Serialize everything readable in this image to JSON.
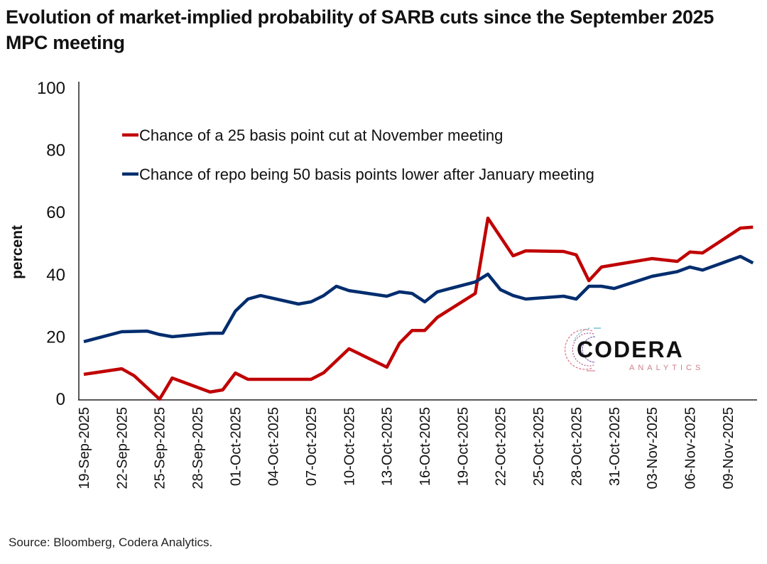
{
  "title": "Evolution of market-implied probability of SARB cuts since the September 2025 MPC meeting",
  "source": "Source: Bloomberg, Codera Analytics.",
  "logo": {
    "name": "CODERA",
    "subtitle": "ANALYTICS"
  },
  "chart_data": {
    "type": "line",
    "title": "Evolution of market-implied probability of SARB cuts since the September 2025 MPC meeting",
    "xlabel": "",
    "ylabel": "percent",
    "ylim": [
      0,
      100
    ],
    "yticks": [
      0,
      20,
      40,
      60,
      80,
      100
    ],
    "x_start": "19-Sep-2025",
    "x_end": "11-Nov-2025",
    "xlim_days": [
      0,
      53
    ],
    "xtick_labels": [
      "19-Sep-2025",
      "22-Sep-2025",
      "25-Sep-2025",
      "28-Sep-2025",
      "01-Oct-2025",
      "04-Oct-2025",
      "07-Oct-2025",
      "10-Oct-2025",
      "13-Oct-2025",
      "16-Oct-2025",
      "19-Oct-2025",
      "22-Oct-2025",
      "25-Oct-2025",
      "28-Oct-2025",
      "31-Oct-2025",
      "03-Nov-2025",
      "06-Nov-2025",
      "09-Nov-2025"
    ],
    "xtick_days": [
      0,
      3,
      6,
      9,
      12,
      15,
      18,
      21,
      24,
      27,
      30,
      33,
      36,
      39,
      42,
      45,
      48,
      51
    ],
    "grid": false,
    "legend_position": "top-left",
    "series": [
      {
        "name": "Chance of a 25 basis point cut at November meeting",
        "color": "#c00000",
        "points": [
          {
            "date": "19-Sep-2025",
            "day": 0,
            "value": 8.0
          },
          {
            "date": "22-Sep-2025",
            "day": 3,
            "value": 9.8
          },
          {
            "date": "23-Sep-2025",
            "day": 4,
            "value": 7.5
          },
          {
            "date": "25-Sep-2025",
            "day": 6,
            "value": 0.0
          },
          {
            "date": "26-Sep-2025",
            "day": 7,
            "value": 6.8
          },
          {
            "date": "29-Sep-2025",
            "day": 10,
            "value": 2.3
          },
          {
            "date": "30-Sep-2025",
            "day": 11,
            "value": 3.0
          },
          {
            "date": "01-Oct-2025",
            "day": 12,
            "value": 8.4
          },
          {
            "date": "02-Oct-2025",
            "day": 13,
            "value": 6.4
          },
          {
            "date": "03-Oct-2025",
            "day": 14,
            "value": 6.4
          },
          {
            "date": "06-Oct-2025",
            "day": 17,
            "value": 6.4
          },
          {
            "date": "07-Oct-2025",
            "day": 18,
            "value": 6.4
          },
          {
            "date": "08-Oct-2025",
            "day": 19,
            "value": 8.5
          },
          {
            "date": "10-Oct-2025",
            "day": 21,
            "value": 16.2
          },
          {
            "date": "13-Oct-2025",
            "day": 24,
            "value": 10.3
          },
          {
            "date": "14-Oct-2025",
            "day": 25,
            "value": 18.0
          },
          {
            "date": "15-Oct-2025",
            "day": 26,
            "value": 22.1
          },
          {
            "date": "16-Oct-2025",
            "day": 27,
            "value": 22.1
          },
          {
            "date": "17-Oct-2025",
            "day": 28,
            "value": 26.3
          },
          {
            "date": "20-Oct-2025",
            "day": 31,
            "value": 34.0
          },
          {
            "date": "21-Oct-2025",
            "day": 32,
            "value": 58.2
          },
          {
            "date": "23-Oct-2025",
            "day": 34,
            "value": 46.1
          },
          {
            "date": "24-Oct-2025",
            "day": 35,
            "value": 47.7
          },
          {
            "date": "27-Oct-2025",
            "day": 38,
            "value": 47.5
          },
          {
            "date": "28-Oct-2025",
            "day": 39,
            "value": 46.4
          },
          {
            "date": "29-Oct-2025",
            "day": 40,
            "value": 38.1
          },
          {
            "date": "30-Oct-2025",
            "day": 41,
            "value": 42.5
          },
          {
            "date": "03-Nov-2025",
            "day": 45,
            "value": 45.2
          },
          {
            "date": "05-Nov-2025",
            "day": 47,
            "value": 44.3
          },
          {
            "date": "06-Nov-2025",
            "day": 48,
            "value": 47.3
          },
          {
            "date": "07-Nov-2025",
            "day": 49,
            "value": 47.0
          },
          {
            "date": "10-Nov-2025",
            "day": 52,
            "value": 55.0
          },
          {
            "date": "11-Nov-2025",
            "day": 53,
            "value": 55.3
          }
        ]
      },
      {
        "name": "Chance of repo being 50 basis points lower after January meeting",
        "color": "#002d6e",
        "points": [
          {
            "date": "19-Sep-2025",
            "day": 0,
            "value": 18.5
          },
          {
            "date": "22-Sep-2025",
            "day": 3,
            "value": 21.7
          },
          {
            "date": "24-Sep-2025",
            "day": 5,
            "value": 21.9
          },
          {
            "date": "25-Sep-2025",
            "day": 6,
            "value": 20.8
          },
          {
            "date": "26-Sep-2025",
            "day": 7,
            "value": 20.1
          },
          {
            "date": "29-Sep-2025",
            "day": 10,
            "value": 21.2
          },
          {
            "date": "30-Sep-2025",
            "day": 11,
            "value": 21.2
          },
          {
            "date": "01-Oct-2025",
            "day": 12,
            "value": 28.3
          },
          {
            "date": "02-Oct-2025",
            "day": 13,
            "value": 32.2
          },
          {
            "date": "03-Oct-2025",
            "day": 14,
            "value": 33.3
          },
          {
            "date": "06-Oct-2025",
            "day": 17,
            "value": 30.6
          },
          {
            "date": "07-Oct-2025",
            "day": 18,
            "value": 31.3
          },
          {
            "date": "08-Oct-2025",
            "day": 19,
            "value": 33.3
          },
          {
            "date": "09-Oct-2025",
            "day": 20,
            "value": 36.3
          },
          {
            "date": "10-Oct-2025",
            "day": 21,
            "value": 34.9
          },
          {
            "date": "13-Oct-2025",
            "day": 24,
            "value": 33.1
          },
          {
            "date": "14-Oct-2025",
            "day": 25,
            "value": 34.5
          },
          {
            "date": "15-Oct-2025",
            "day": 26,
            "value": 34.0
          },
          {
            "date": "16-Oct-2025",
            "day": 27,
            "value": 31.3
          },
          {
            "date": "17-Oct-2025",
            "day": 28,
            "value": 34.5
          },
          {
            "date": "20-Oct-2025",
            "day": 31,
            "value": 37.7
          },
          {
            "date": "21-Oct-2025",
            "day": 32,
            "value": 40.2
          },
          {
            "date": "22-Oct-2025",
            "day": 33,
            "value": 35.2
          },
          {
            "date": "23-Oct-2025",
            "day": 34,
            "value": 33.3
          },
          {
            "date": "24-Oct-2025",
            "day": 35,
            "value": 32.2
          },
          {
            "date": "27-Oct-2025",
            "day": 38,
            "value": 33.1
          },
          {
            "date": "28-Oct-2025",
            "day": 39,
            "value": 32.2
          },
          {
            "date": "29-Oct-2025",
            "day": 40,
            "value": 36.3
          },
          {
            "date": "30-Oct-2025",
            "day": 41,
            "value": 36.3
          },
          {
            "date": "31-Oct-2025",
            "day": 42,
            "value": 35.6
          },
          {
            "date": "03-Nov-2025",
            "day": 45,
            "value": 39.5
          },
          {
            "date": "05-Nov-2025",
            "day": 47,
            "value": 41.0
          },
          {
            "date": "06-Nov-2025",
            "day": 48,
            "value": 42.5
          },
          {
            "date": "07-Nov-2025",
            "day": 49,
            "value": 41.5
          },
          {
            "date": "10-Nov-2025",
            "day": 52,
            "value": 45.9
          },
          {
            "date": "11-Nov-2025",
            "day": 53,
            "value": 43.8
          }
        ]
      }
    ]
  }
}
